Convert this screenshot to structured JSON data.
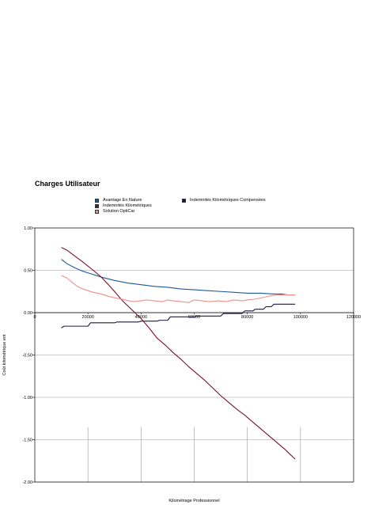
{
  "chart_data": {
    "type": "line",
    "title": "Charges Utilisateur",
    "xlabel": "Kilométrage Professionnel",
    "ylabel": "Coût kilométrique ent",
    "xlim": [
      0,
      120000
    ],
    "ylim": [
      -2.0,
      1.0
    ],
    "xticks": [
      "0",
      "20000",
      "40000",
      "60000",
      "80000",
      "100000",
      "120000"
    ],
    "yticks": [
      "1.00",
      "0.50",
      "0.00",
      "-0.50",
      "-1.00",
      "-1.50",
      "-2.00"
    ],
    "grid": true,
    "legend_position": "top",
    "series": [
      {
        "name": "Avantage En Nature",
        "color": "#1f5a96",
        "points": [
          [
            10000,
            0.63
          ],
          [
            12000,
            0.58
          ],
          [
            15000,
            0.53
          ],
          [
            18000,
            0.49
          ],
          [
            21000,
            0.46
          ],
          [
            25000,
            0.42
          ],
          [
            30000,
            0.38
          ],
          [
            35000,
            0.35
          ],
          [
            40000,
            0.33
          ],
          [
            45000,
            0.31
          ],
          [
            50000,
            0.3
          ],
          [
            55000,
            0.28
          ],
          [
            60000,
            0.27
          ],
          [
            65000,
            0.26
          ],
          [
            70000,
            0.25
          ],
          [
            75000,
            0.24
          ],
          [
            80000,
            0.23
          ],
          [
            85000,
            0.23
          ],
          [
            90000,
            0.22
          ],
          [
            93000,
            0.22
          ],
          [
            95000,
            0.21
          ],
          [
            98000,
            0.21
          ]
        ]
      },
      {
        "name": "Indemnités Kilométriques Compensées",
        "color": "#1a1a40",
        "points": [
          [
            10000,
            -0.18
          ],
          [
            11000,
            -0.16
          ],
          [
            20000,
            -0.16
          ],
          [
            21000,
            -0.12
          ],
          [
            30000,
            -0.12
          ],
          [
            31000,
            -0.11
          ],
          [
            39000,
            -0.11
          ],
          [
            40000,
            -0.1
          ],
          [
            46000,
            -0.1
          ],
          [
            47000,
            -0.09
          ],
          [
            50000,
            -0.09
          ],
          [
            51000,
            -0.05
          ],
          [
            60000,
            -0.05
          ],
          [
            61000,
            -0.04
          ],
          [
            70000,
            -0.04
          ],
          [
            71000,
            -0.01
          ],
          [
            78000,
            -0.01
          ],
          [
            79000,
            0.02
          ],
          [
            82000,
            0.02
          ],
          [
            83000,
            0.04
          ],
          [
            86000,
            0.04
          ],
          [
            87000,
            0.07
          ],
          [
            89000,
            0.07
          ],
          [
            90000,
            0.1
          ],
          [
            98000,
            0.1
          ]
        ]
      },
      {
        "name": "Indemnités Kilométriques",
        "color": "#7a1030",
        "points": [
          [
            10000,
            0.77
          ],
          [
            12000,
            0.74
          ],
          [
            15000,
            0.67
          ],
          [
            18000,
            0.6
          ],
          [
            20000,
            0.55
          ],
          [
            22000,
            0.5
          ],
          [
            25000,
            0.42
          ],
          [
            28000,
            0.32
          ],
          [
            30000,
            0.25
          ],
          [
            33000,
            0.14
          ],
          [
            36000,
            0.05
          ],
          [
            40000,
            -0.07
          ],
          [
            43000,
            -0.18
          ],
          [
            46000,
            -0.3
          ],
          [
            49000,
            -0.38
          ],
          [
            52000,
            -0.47
          ],
          [
            55000,
            -0.55
          ],
          [
            58000,
            -0.64
          ],
          [
            61000,
            -0.72
          ],
          [
            64000,
            -0.8
          ],
          [
            67000,
            -0.89
          ],
          [
            70000,
            -0.98
          ],
          [
            73000,
            -1.06
          ],
          [
            76000,
            -1.14
          ],
          [
            79000,
            -1.21
          ],
          [
            82000,
            -1.29
          ],
          [
            85000,
            -1.37
          ],
          [
            88000,
            -1.45
          ],
          [
            91000,
            -1.53
          ],
          [
            94000,
            -1.61
          ],
          [
            96000,
            -1.67
          ],
          [
            98000,
            -1.73
          ]
        ]
      },
      {
        "name": "Solution OptiCar",
        "color": "#f0908a",
        "points": [
          [
            10000,
            0.44
          ],
          [
            12000,
            0.41
          ],
          [
            14000,
            0.36
          ],
          [
            16000,
            0.31
          ],
          [
            18000,
            0.28
          ],
          [
            20000,
            0.26
          ],
          [
            22000,
            0.24
          ],
          [
            25000,
            0.22
          ],
          [
            28000,
            0.19
          ],
          [
            31000,
            0.17
          ],
          [
            34000,
            0.15
          ],
          [
            37000,
            0.13
          ],
          [
            40000,
            0.14
          ],
          [
            42000,
            0.15
          ],
          [
            45000,
            0.14
          ],
          [
            48000,
            0.13
          ],
          [
            50000,
            0.15
          ],
          [
            52000,
            0.14
          ],
          [
            55000,
            0.13
          ],
          [
            58000,
            0.12
          ],
          [
            60000,
            0.15
          ],
          [
            63000,
            0.14
          ],
          [
            66000,
            0.13
          ],
          [
            69000,
            0.14
          ],
          [
            72000,
            0.13
          ],
          [
            75000,
            0.15
          ],
          [
            78000,
            0.14
          ],
          [
            80000,
            0.15
          ],
          [
            83000,
            0.16
          ],
          [
            86000,
            0.18
          ],
          [
            89000,
            0.2
          ],
          [
            92000,
            0.21
          ],
          [
            95000,
            0.21
          ],
          [
            98000,
            0.21
          ]
        ]
      }
    ]
  }
}
